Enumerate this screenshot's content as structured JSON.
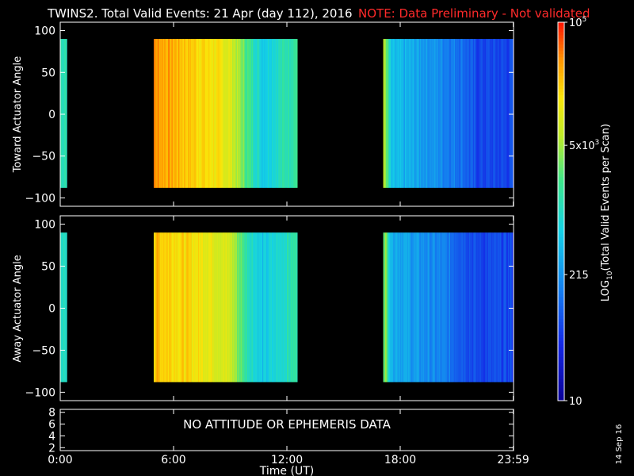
{
  "header": {
    "title": "TWINS2. Total Valid Events: 21 Apr (day 112), 2016",
    "note": "NOTE: Data Preliminary - Not validated"
  },
  "colors": {
    "background": "#000000",
    "text": "#ffffff",
    "note": "#ff2a2a"
  },
  "colorbar": {
    "label": "LOG10(Total Valid Events per Scan)",
    "label_main": "LOG",
    "label_sub": "10",
    "label_rest": "(Total Valid Events per Scan)",
    "ticks": [
      {
        "value": 100000,
        "text": "10",
        "sup": "5"
      },
      {
        "value": 5000,
        "text": "5x10",
        "sup": "3"
      },
      {
        "value": 215,
        "text": "215",
        "sup": ""
      },
      {
        "value": 10,
        "text": "10",
        "sup": ""
      }
    ],
    "range": [
      10,
      100000
    ],
    "scale": "log"
  },
  "chart_data": [
    {
      "type": "heatmap",
      "panel": "top",
      "ylabel": "Toward Actuator Angle",
      "ylim": [
        -110,
        110
      ],
      "yticks": [
        -100,
        -50,
        0,
        50,
        100
      ],
      "x_hours": [
        0.0,
        5.0,
        8.0,
        9.0,
        9.8,
        10.7,
        12.5,
        17.2,
        17.5,
        18.6,
        20.0,
        21.3,
        22.0,
        23.98
      ],
      "x_gaps_hours": [
        [
          0.35,
          4.9
        ],
        [
          12.55,
          17.1
        ]
      ],
      "angle_range": [
        -88,
        90
      ],
      "log10_events_profile": [
        3.1,
        4.6,
        4.2,
        4.0,
        3.4,
        2.8,
        3.3,
        3.7,
        2.6,
        2.5,
        2.3,
        2.1,
        1.8,
        1.8
      ]
    },
    {
      "type": "heatmap",
      "panel": "middle",
      "ylabel": "Away Actuator Angle",
      "ylim": [
        -110,
        110
      ],
      "yticks": [
        -100,
        -50,
        0,
        50,
        100
      ],
      "x_hours": [
        0.0,
        5.0,
        8.0,
        9.0,
        9.8,
        10.7,
        12.5,
        17.2,
        17.5,
        18.6,
        20.0,
        21.3,
        22.0,
        23.98
      ],
      "x_gaps_hours": [
        [
          0.35,
          4.9
        ],
        [
          12.55,
          17.1
        ]
      ],
      "angle_range": [
        -88,
        90
      ],
      "log10_events_profile": [
        3.0,
        4.4,
        4.1,
        3.9,
        3.2,
        2.7,
        3.2,
        3.6,
        2.6,
        2.4,
        2.2,
        2.0,
        1.8,
        1.8
      ]
    },
    {
      "type": "line",
      "panel": "bottom",
      "message": "NO ATTITUDE OR EPHEMERIS DATA",
      "ylim": [
        1.5,
        8.5
      ],
      "yticks": [
        2,
        4,
        6,
        8
      ]
    }
  ],
  "xaxis": {
    "label": "Time (UT)",
    "range_hours": [
      0,
      24
    ],
    "ticks": [
      {
        "hours": 0,
        "label": "0:00"
      },
      {
        "hours": 6,
        "label": "6:00"
      },
      {
        "hours": 12,
        "label": "12:00"
      },
      {
        "hours": 18,
        "label": "18:00"
      },
      {
        "hours": 23.983,
        "label": "23:59"
      }
    ]
  },
  "footer": {
    "date_stamp": "14 Sep 16"
  }
}
